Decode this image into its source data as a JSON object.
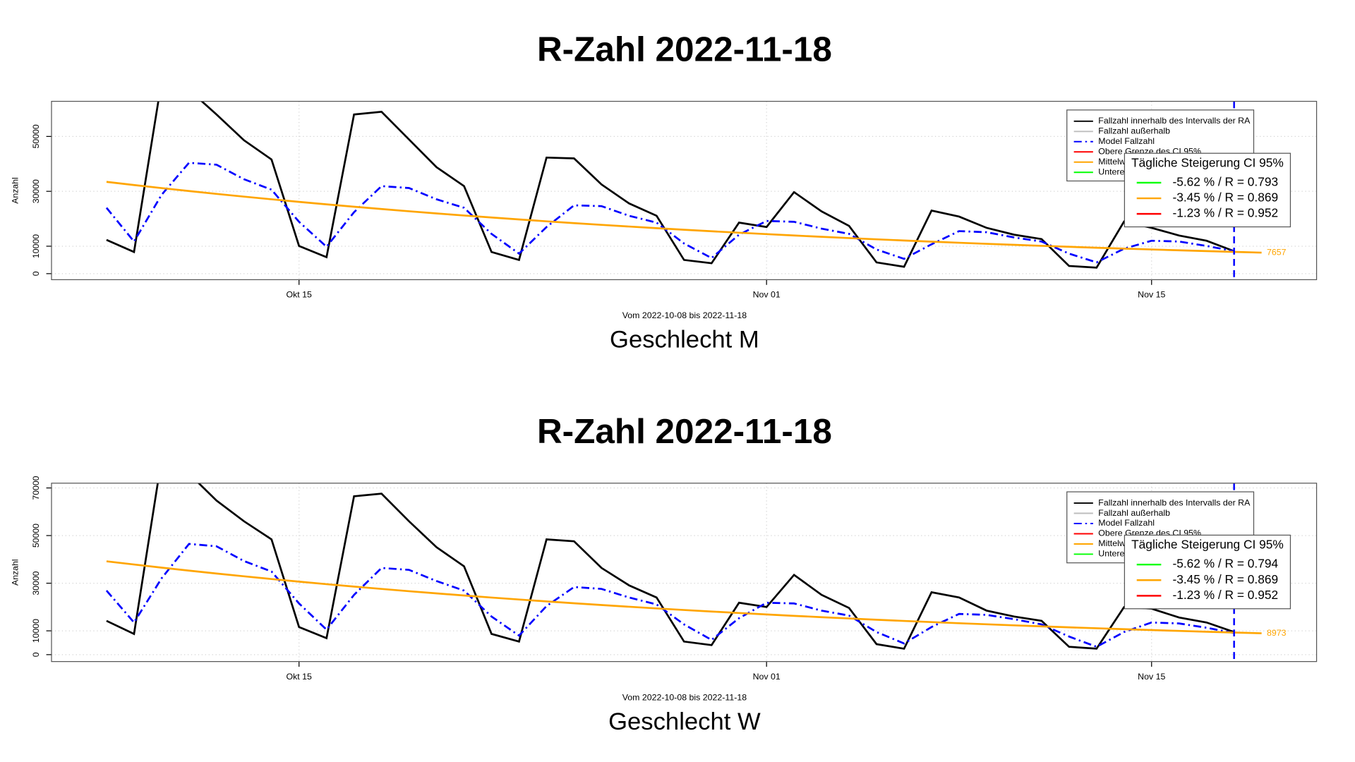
{
  "chart_data": [
    {
      "type": "line",
      "title": "R-Zahl 2022-11-18",
      "subtitle": "Geschlecht M",
      "xlabel": "Vom 2022-10-08 bis 2022-11-18",
      "ylabel": "Anzahl",
      "x": [
        "2022-10-08",
        "2022-10-09",
        "2022-10-10",
        "2022-10-11",
        "2022-10-12",
        "2022-10-13",
        "2022-10-14",
        "2022-10-15",
        "2022-10-16",
        "2022-10-17",
        "2022-10-18",
        "2022-10-19",
        "2022-10-20",
        "2022-10-21",
        "2022-10-22",
        "2022-10-23",
        "2022-10-24",
        "2022-10-25",
        "2022-10-26",
        "2022-10-27",
        "2022-10-28",
        "2022-10-29",
        "2022-10-30",
        "2022-10-31",
        "2022-11-01",
        "2022-11-02",
        "2022-11-03",
        "2022-11-04",
        "2022-11-05",
        "2022-11-06",
        "2022-11-07",
        "2022-11-08",
        "2022-11-09",
        "2022-11-10",
        "2022-11-11",
        "2022-11-12",
        "2022-11-13",
        "2022-11-14",
        "2022-11-15",
        "2022-11-16",
        "2022-11-17",
        "2022-11-18",
        "2022-11-19"
      ],
      "series": [
        {
          "color": "#000000",
          "style": "solid",
          "values": [
            12300,
            7900,
            70000,
            67000,
            58000,
            48600,
            41600,
            10100,
            6000,
            58000,
            59000,
            48900,
            38800,
            31900,
            7900,
            5000,
            42300,
            42000,
            32500,
            25600,
            21100,
            5000,
            3800,
            18600,
            17000,
            29700,
            22700,
            17400,
            4100,
            2500,
            23000,
            20800,
            16700,
            14200,
            12600,
            2800,
            2200,
            19000,
            16700,
            13900,
            12000,
            8200,
            null
          ]
        },
        {
          "color": "#0000ff",
          "style": "dashdot",
          "values": [
            24000,
            11700,
            28700,
            40400,
            39700,
            34400,
            30600,
            18900,
            9800,
            22400,
            31900,
            31200,
            27100,
            24000,
            14500,
            7300,
            17000,
            24900,
            24600,
            21100,
            18600,
            11000,
            5700,
            14200,
            19200,
            18900,
            16400,
            14500,
            8800,
            5400,
            10700,
            15500,
            15100,
            13200,
            11700,
            7300,
            4100,
            9100,
            12000,
            11700,
            10100,
            8200,
            null
          ]
        },
        {
          "color": "#ffa500",
          "style": "solid",
          "values": [
            33450,
            32296,
            31182,
            30106,
            29067,
            28064,
            27096,
            26161,
            25259,
            24387,
            23546,
            22734,
            21949,
            21192,
            20461,
            19755,
            19073,
            18415,
            17780,
            17167,
            16574,
            16003,
            15451,
            14918,
            14403,
            13906,
            13426,
            12963,
            12516,
            12084,
            11667,
            11264,
            10876,
            10501,
            10138,
            9788,
            9451,
            9125,
            8810,
            8506,
            8212,
            7929,
            7657
          ]
        }
      ],
      "xlim": [
        "2022-10-06",
        "2022-11-21"
      ],
      "xticks": [
        {
          "value": "2022-10-15",
          "label": "Okt 15"
        },
        {
          "value": "2022-11-01",
          "label": "Nov 01"
        },
        {
          "value": "2022-11-15",
          "label": "Nov 15"
        }
      ],
      "ylim": [
        -2200,
        62800
      ],
      "yticks": [
        0,
        10000,
        30000,
        50000
      ],
      "grid": true,
      "vline": {
        "x": "2022-11-18",
        "color": "#0000ff"
      },
      "legend": [
        {
          "name": "Fallzahl innerhalb des Intervalls der RA",
          "color": "#000000",
          "style": "solid"
        },
        {
          "name": "Fallzahl außerhalb",
          "color": "#bebebe",
          "style": "solid"
        },
        {
          "name": "Model Fallzahl",
          "color": "#0000ff",
          "style": "dashdot"
        },
        {
          "name": "Obere Grenze des CI 95%",
          "color": "#ff0000",
          "style": "solid"
        },
        {
          "name": "Mittelw",
          "color": "#ffa500",
          "style": "solid"
        },
        {
          "name": "Untere",
          "color": "#00ff00",
          "style": "solid"
        }
      ],
      "ci_box": {
        "title": "Tägliche Steigerung CI  95%",
        "entries": [
          {
            "label": "-5.62 % / R = 0.793",
            "color": "#00ff00"
          },
          {
            "label": "-3.45 % / R = 0.869",
            "color": "#ffa500"
          },
          {
            "label": "-1.23 % / R = 0.952",
            "color": "#ff0000"
          }
        ]
      }
    },
    {
      "type": "line",
      "title": "R-Zahl 2022-11-18",
      "subtitle": "Geschlecht W",
      "xlabel": "Vom 2022-10-08 bis 2022-11-18",
      "ylabel": "Anzahl",
      "x": [
        "2022-10-08",
        "2022-10-09",
        "2022-10-10",
        "2022-10-11",
        "2022-10-12",
        "2022-10-13",
        "2022-10-14",
        "2022-10-15",
        "2022-10-16",
        "2022-10-17",
        "2022-10-18",
        "2022-10-19",
        "2022-10-20",
        "2022-10-21",
        "2022-10-22",
        "2022-10-23",
        "2022-10-24",
        "2022-10-25",
        "2022-10-26",
        "2022-10-27",
        "2022-10-28",
        "2022-10-29",
        "2022-10-30",
        "2022-10-31",
        "2022-11-01",
        "2022-11-02",
        "2022-11-03",
        "2022-11-04",
        "2022-11-05",
        "2022-11-06",
        "2022-11-07",
        "2022-11-08",
        "2022-11-09",
        "2022-11-10",
        "2022-11-11",
        "2022-11-12",
        "2022-11-13",
        "2022-11-14",
        "2022-11-15",
        "2022-11-16",
        "2022-11-17",
        "2022-11-18",
        "2022-11-19"
      ],
      "series": [
        {
          "color": "#000000",
          "style": "solid",
          "values": [
            14200,
            8700,
            82000,
            76000,
            64700,
            56000,
            48400,
            11600,
            6900,
            66500,
            67600,
            56000,
            45100,
            37100,
            8700,
            5500,
            48400,
            47600,
            36400,
            29100,
            24000,
            5500,
            4000,
            21800,
            20000,
            33500,
            25100,
            19600,
            4400,
            2500,
            26200,
            24000,
            18500,
            16000,
            14200,
            3300,
            2500,
            20000,
            19300,
            15600,
            13500,
            9500,
            null
          ]
        },
        {
          "color": "#0000ff",
          "style": "dashdot",
          "values": [
            26900,
            13500,
            32000,
            46500,
            45500,
            39300,
            34900,
            21500,
            10500,
            25100,
            36400,
            35600,
            30900,
            26900,
            16000,
            8000,
            20400,
            28400,
            27600,
            24000,
            21100,
            12700,
            6200,
            15300,
            21800,
            21500,
            18500,
            16400,
            9500,
            4700,
            11600,
            17100,
            16700,
            14900,
            12700,
            7600,
            3300,
            9500,
            13500,
            13100,
            11300,
            9100,
            null
          ]
        },
        {
          "color": "#ffa500",
          "style": "solid",
          "values": [
            39200,
            37848,
            36542,
            35281,
            34064,
            32888,
            31754,
            30658,
            29601,
            28579,
            27594,
            26642,
            25722,
            24835,
            23978,
            23151,
            22352,
            21581,
            20836,
            20118,
            19423,
            18754,
            18107,
            17482,
            16879,
            16296,
            15734,
            15191,
            14667,
            14161,
            13673,
            13200,
            12746,
            12306,
            11881,
            11471,
            11076,
            10694,
            10324,
            9968,
            9624,
            9292,
            8973
          ]
        }
      ],
      "xlim": [
        "2022-10-06",
        "2022-11-21"
      ],
      "xticks": [
        {
          "value": "2022-10-15",
          "label": "Okt 15"
        },
        {
          "value": "2022-11-01",
          "label": "Nov 01"
        },
        {
          "value": "2022-11-15",
          "label": "Nov 15"
        }
      ],
      "ylim": [
        -2900,
        72000
      ],
      "yticks": [
        0,
        10000,
        30000,
        50000,
        70000
      ],
      "grid": true,
      "vline": {
        "x": "2022-11-18",
        "color": "#0000ff"
      },
      "legend": [
        {
          "name": "Fallzahl innerhalb des Intervalls der RA",
          "color": "#000000",
          "style": "solid"
        },
        {
          "name": "Fallzahl außerhalb",
          "color": "#bebebe",
          "style": "solid"
        },
        {
          "name": "Model Fallzahl",
          "color": "#0000ff",
          "style": "dashdot"
        },
        {
          "name": "Obere Grenze des CI 95%",
          "color": "#ff0000",
          "style": "solid"
        },
        {
          "name": "Mittelw",
          "color": "#ffa500",
          "style": "solid"
        },
        {
          "name": "Untere",
          "color": "#00ff00",
          "style": "solid"
        }
      ],
      "ci_box": {
        "title": "Tägliche Steigerung CI  95%",
        "entries": [
          {
            "label": "-5.62 % / R = 0.794",
            "color": "#00ff00"
          },
          {
            "label": "-3.45 % / R = 0.869",
            "color": "#ffa500"
          },
          {
            "label": "-1.23 % / R = 0.952",
            "color": "#ff0000"
          }
        ]
      }
    }
  ]
}
